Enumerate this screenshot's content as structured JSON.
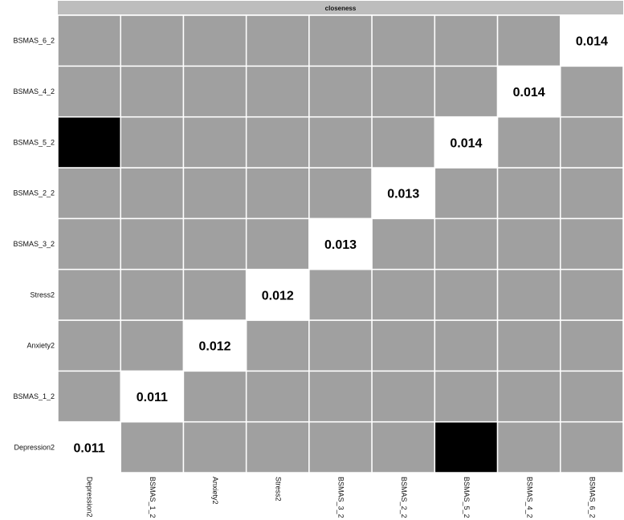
{
  "chart_data": {
    "type": "heatmap",
    "strip_label": "closeness",
    "rows": [
      "Depression2",
      "BSMAS_1_2",
      "Anxiety2",
      "Stress2",
      "BSMAS_3_2",
      "BSMAS_2_2",
      "BSMAS_5_2",
      "BSMAS_4_2",
      "BSMAS_6_2"
    ],
    "columns": [
      "Depression2",
      "BSMAS_1_2",
      "Anxiety2",
      "Stress2",
      "BSMAS_3_2",
      "BSMAS_2_2",
      "BSMAS_5_2",
      "BSMAS_4_2",
      "BSMAS_6_2"
    ],
    "diagonal_values": [
      "0.011",
      "0.011",
      "0.012",
      "0.012",
      "0.013",
      "0.013",
      "0.014",
      "0.014",
      "0.014"
    ],
    "black_cells": [
      {
        "row": "BSMAS_5_2",
        "column": "Depression2"
      },
      {
        "row": "Depression2",
        "column": "BSMAS_5_2"
      }
    ],
    "colors": {
      "cell": "#a0a0a0",
      "diagonal": "#ffffff",
      "black": "#000000",
      "grid": "#ffffff",
      "strip": "#bdbdbd"
    },
    "grid": true,
    "legend": "none"
  }
}
